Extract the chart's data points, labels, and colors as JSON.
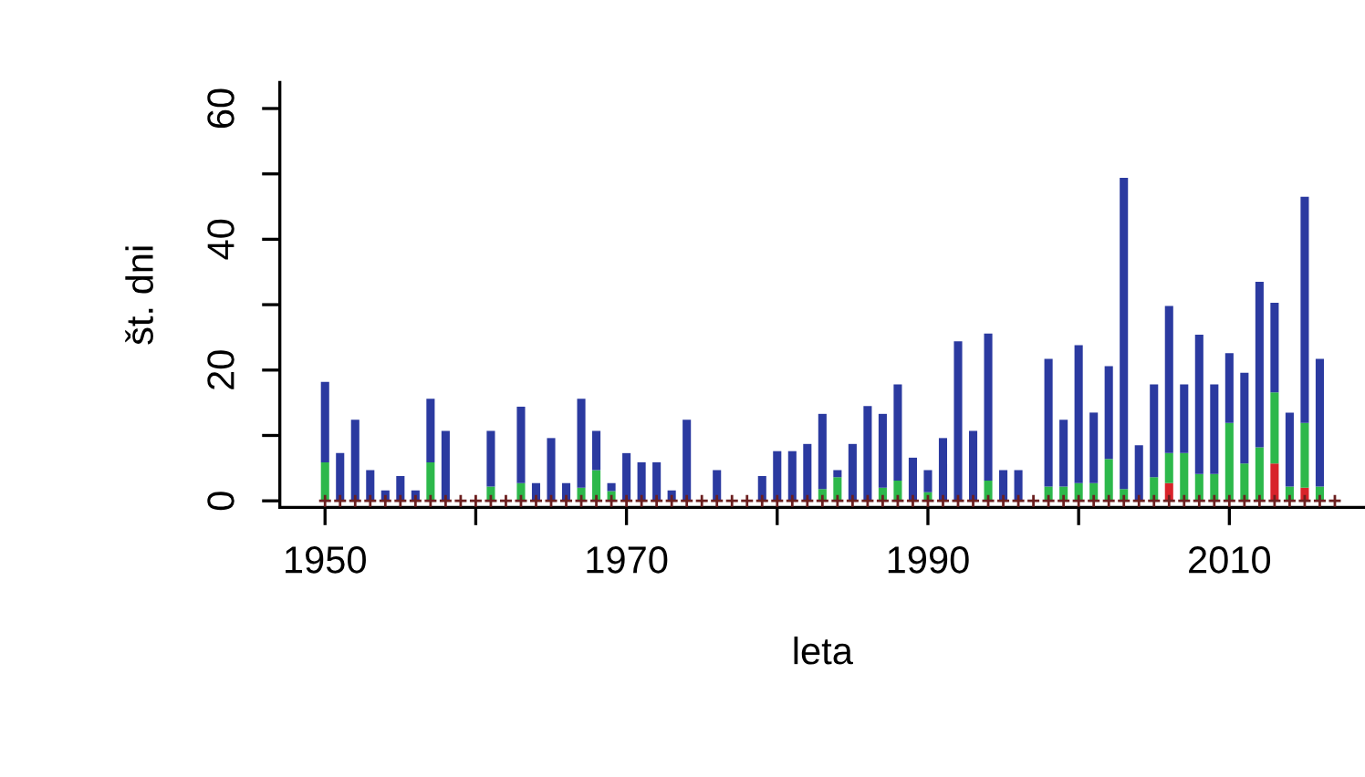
{
  "chart_data": {
    "type": "bar",
    "stacked": true,
    "xlabel": "leta",
    "ylabel": "št. dni",
    "x": [
      1950,
      1951,
      1952,
      1953,
      1954,
      1955,
      1956,
      1957,
      1958,
      1959,
      1960,
      1961,
      1962,
      1963,
      1964,
      1965,
      1966,
      1967,
      1968,
      1969,
      1970,
      1971,
      1972,
      1973,
      1974,
      1975,
      1976,
      1977,
      1978,
      1979,
      1980,
      1981,
      1982,
      1983,
      1984,
      1985,
      1986,
      1987,
      1988,
      1989,
      1990,
      1991,
      1992,
      1993,
      1994,
      1995,
      1996,
      1997,
      1998,
      1999,
      2000,
      2001,
      2002,
      2003,
      2004,
      2005,
      2006,
      2007,
      2008,
      2009,
      2010,
      2011,
      2012,
      2013,
      2014,
      2015,
      2016,
      2017
    ],
    "series": [
      {
        "color": "#d8232a",
        "values": [
          0,
          0,
          0,
          0,
          0,
          0,
          0,
          0,
          0,
          0,
          0,
          0,
          0,
          0,
          0,
          0,
          0,
          0,
          0,
          0,
          0,
          0,
          0,
          0,
          0,
          0,
          0,
          0,
          0,
          0,
          0,
          0,
          0,
          0,
          0,
          0,
          0,
          0,
          0,
          0,
          0,
          0,
          0,
          0,
          0,
          0,
          0,
          0,
          0,
          0,
          0,
          0,
          0,
          0,
          0,
          0,
          2.7,
          0,
          0,
          0,
          0,
          0,
          0,
          5.7,
          0,
          2,
          0,
          0
        ]
      },
      {
        "color": "#2db84b",
        "values": [
          5.9,
          0,
          0,
          0,
          0,
          0,
          0,
          5.9,
          0,
          0,
          0,
          2.2,
          0,
          2.7,
          0,
          0,
          0,
          2,
          4.7,
          1.5,
          0,
          0,
          0,
          0,
          0,
          0,
          0,
          0,
          0,
          0,
          0,
          0,
          0,
          1.8,
          3.6,
          0,
          0,
          2,
          3.1,
          0,
          1.3,
          0,
          0,
          0,
          3.1,
          0,
          0,
          0,
          2.2,
          2.2,
          2.7,
          2.7,
          6.4,
          1.8,
          0,
          3.6,
          4.6,
          7.3,
          4.1,
          4.1,
          11.9,
          5.7,
          8.2,
          10.9,
          2.2,
          9.9,
          2.2,
          0
        ]
      },
      {
        "color": "#2b3aa0",
        "values": [
          12.3,
          7.3,
          12.4,
          4.7,
          1.6,
          3.8,
          1.6,
          9.7,
          10.7,
          0,
          0,
          8.5,
          0,
          11.7,
          2.7,
          9.6,
          2.7,
          13.6,
          6,
          1.2,
          7.3,
          5.9,
          5.9,
          1.6,
          12.4,
          0,
          4.7,
          0,
          0,
          3.8,
          7.6,
          7.6,
          8.7,
          11.5,
          1.1,
          8.7,
          14.5,
          11.3,
          14.7,
          6.6,
          3.4,
          9.6,
          24.4,
          10.7,
          22.5,
          4.7,
          4.7,
          0,
          19.5,
          10.2,
          21.1,
          10.8,
          14.2,
          47.6,
          8.5,
          14.2,
          22.5,
          10.5,
          21.3,
          13.7,
          10.7,
          13.9,
          25.3,
          13.7,
          11.3,
          34.6,
          19.5,
          0
        ]
      },
      {
        "type": "scatter",
        "marker": "cross",
        "color": "#6b1f1f",
        "values": [
          0,
          0,
          0,
          0,
          0,
          0,
          0,
          0,
          0,
          0,
          0,
          0,
          0,
          0,
          0,
          0,
          0,
          0,
          0,
          0,
          0,
          0,
          0,
          0,
          0,
          0,
          0,
          0,
          0,
          0,
          0,
          0,
          0,
          0,
          0,
          0,
          0,
          0,
          0,
          0,
          0,
          0,
          0,
          0,
          0,
          0,
          0,
          0,
          0,
          0,
          0,
          0,
          0,
          0,
          0,
          0,
          0,
          0,
          0,
          0,
          0,
          0,
          0,
          0,
          0,
          0,
          0,
          0
        ]
      }
    ],
    "xlim": [
      1947,
      2019
    ],
    "ylim": [
      -1,
      64
    ],
    "xticks": [
      1950,
      {
        "value": 1960,
        "label": null
      },
      1970,
      {
        "value": 1980,
        "label": null
      },
      1990,
      {
        "value": 2000,
        "label": null
      },
      2010
    ],
    "yticks": [
      0,
      {
        "value": 10,
        "label": null
      },
      20,
      {
        "value": 30,
        "label": null
      },
      40,
      {
        "value": 50,
        "label": null
      },
      60
    ],
    "grid": false,
    "legend": false
  }
}
